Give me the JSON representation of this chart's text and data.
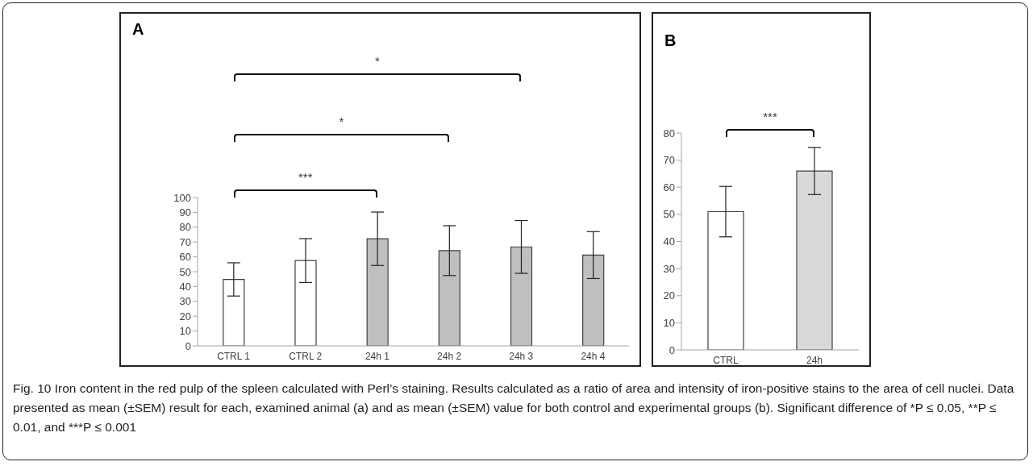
{
  "chart_data": [
    {
      "type": "bar",
      "title": "A",
      "categories": [
        "CTRL 1",
        "CTRL 2",
        "24h 1",
        "24h 2",
        "24h 3",
        "24h 4"
      ],
      "values": [
        44.8,
        57.5,
        72.2,
        64.2,
        66.7,
        61.2
      ],
      "errors": [
        11.2,
        14.8,
        18,
        16.8,
        17.8,
        15.8
      ],
      "colors": [
        "#ffffff",
        "#ffffff",
        "#bfbfbf",
        "#bfbfbf",
        "#bfbfbf",
        "#bfbfbf"
      ],
      "ylim": [
        0,
        100
      ],
      "yticks": [
        0,
        10,
        20,
        30,
        40,
        50,
        60,
        70,
        80,
        90,
        100
      ],
      "annotations": [
        "*",
        "*",
        "***",
        "Fig. 10 Iron content in the red pulp of the spleen calculated with Perl’s staining. Results calculated as a ratio of area and intensity of iron-positive stains to the area of cell nuclei. Data presented as mean (±SEM) result for each, examined animal (a) and as mean (±SEM) value for both control and experimental groups (b). Significant difference of *P ≤ 0.05, **P ≤ 0.01, and ***P ≤ 0.001"
      ]
    },
    {
      "type": "bar",
      "title": "B",
      "categories": [
        "CTRL",
        "24h"
      ],
      "values": [
        51,
        66
      ],
      "errors": [
        9.3,
        8.7
      ],
      "colors": [
        "#ffffff",
        "#d9d9d9"
      ],
      "ylim": [
        0,
        80
      ],
      "yticks": [
        0,
        10,
        20,
        30,
        40,
        50,
        60,
        70,
        80
      ],
      "annotations": [
        "***"
      ]
    }
  ]
}
